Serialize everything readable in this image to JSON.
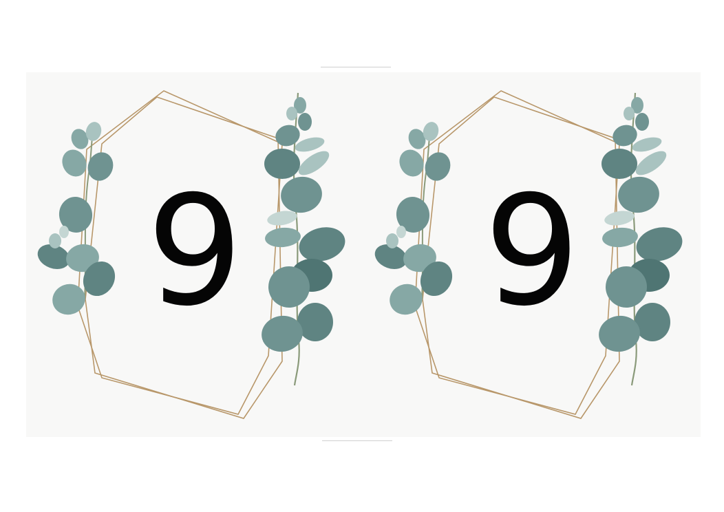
{
  "cards": [
    {
      "number": "9"
    },
    {
      "number": "9"
    }
  ],
  "colors": {
    "frame_gold": "#b8976a",
    "leaf_dark": "#5f8482",
    "leaf_mid": "#86a8a5",
    "leaf_light": "#c4d6d3",
    "stem": "#8a9a7a",
    "paper": "#f8f8f7",
    "number_ink": "#050505"
  },
  "icons": [
    "eucalyptus-left-icon",
    "eucalyptus-right-icon",
    "geometric-frame-icon"
  ]
}
